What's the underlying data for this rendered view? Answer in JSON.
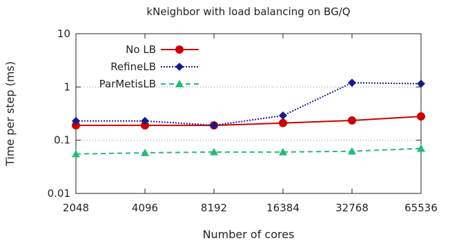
{
  "chart_data": {
    "type": "line",
    "title": "kNeighbor with load balancing on BG/Q",
    "xlabel": "Number of cores",
    "ylabel": "Time per step (ms)",
    "y_scale": "log",
    "ylim": [
      0.01,
      10
    ],
    "y_ticks": [
      "0.01",
      "0.1",
      "1",
      "10"
    ],
    "categories": [
      "2048",
      "4096",
      "8192",
      "16384",
      "32768",
      "65536"
    ],
    "grid": "horizontal dotted",
    "legend_position": "top-left",
    "series": [
      {
        "name": "No LB",
        "values": [
          0.19,
          0.19,
          0.19,
          0.21,
          0.235,
          0.28
        ],
        "color": "#cc0000",
        "marker": "circle",
        "line": "solid"
      },
      {
        "name": "RefineLB",
        "values": [
          0.23,
          0.23,
          0.19,
          0.29,
          1.2,
          1.15
        ],
        "color": "#1a1a8c",
        "marker": "diamond",
        "line": "dotted"
      },
      {
        "name": "ParMetisLB",
        "values": [
          0.055,
          0.058,
          0.06,
          0.06,
          0.062,
          0.07
        ],
        "color": "#22bb77",
        "marker": "triangle",
        "line": "dashed"
      }
    ]
  }
}
